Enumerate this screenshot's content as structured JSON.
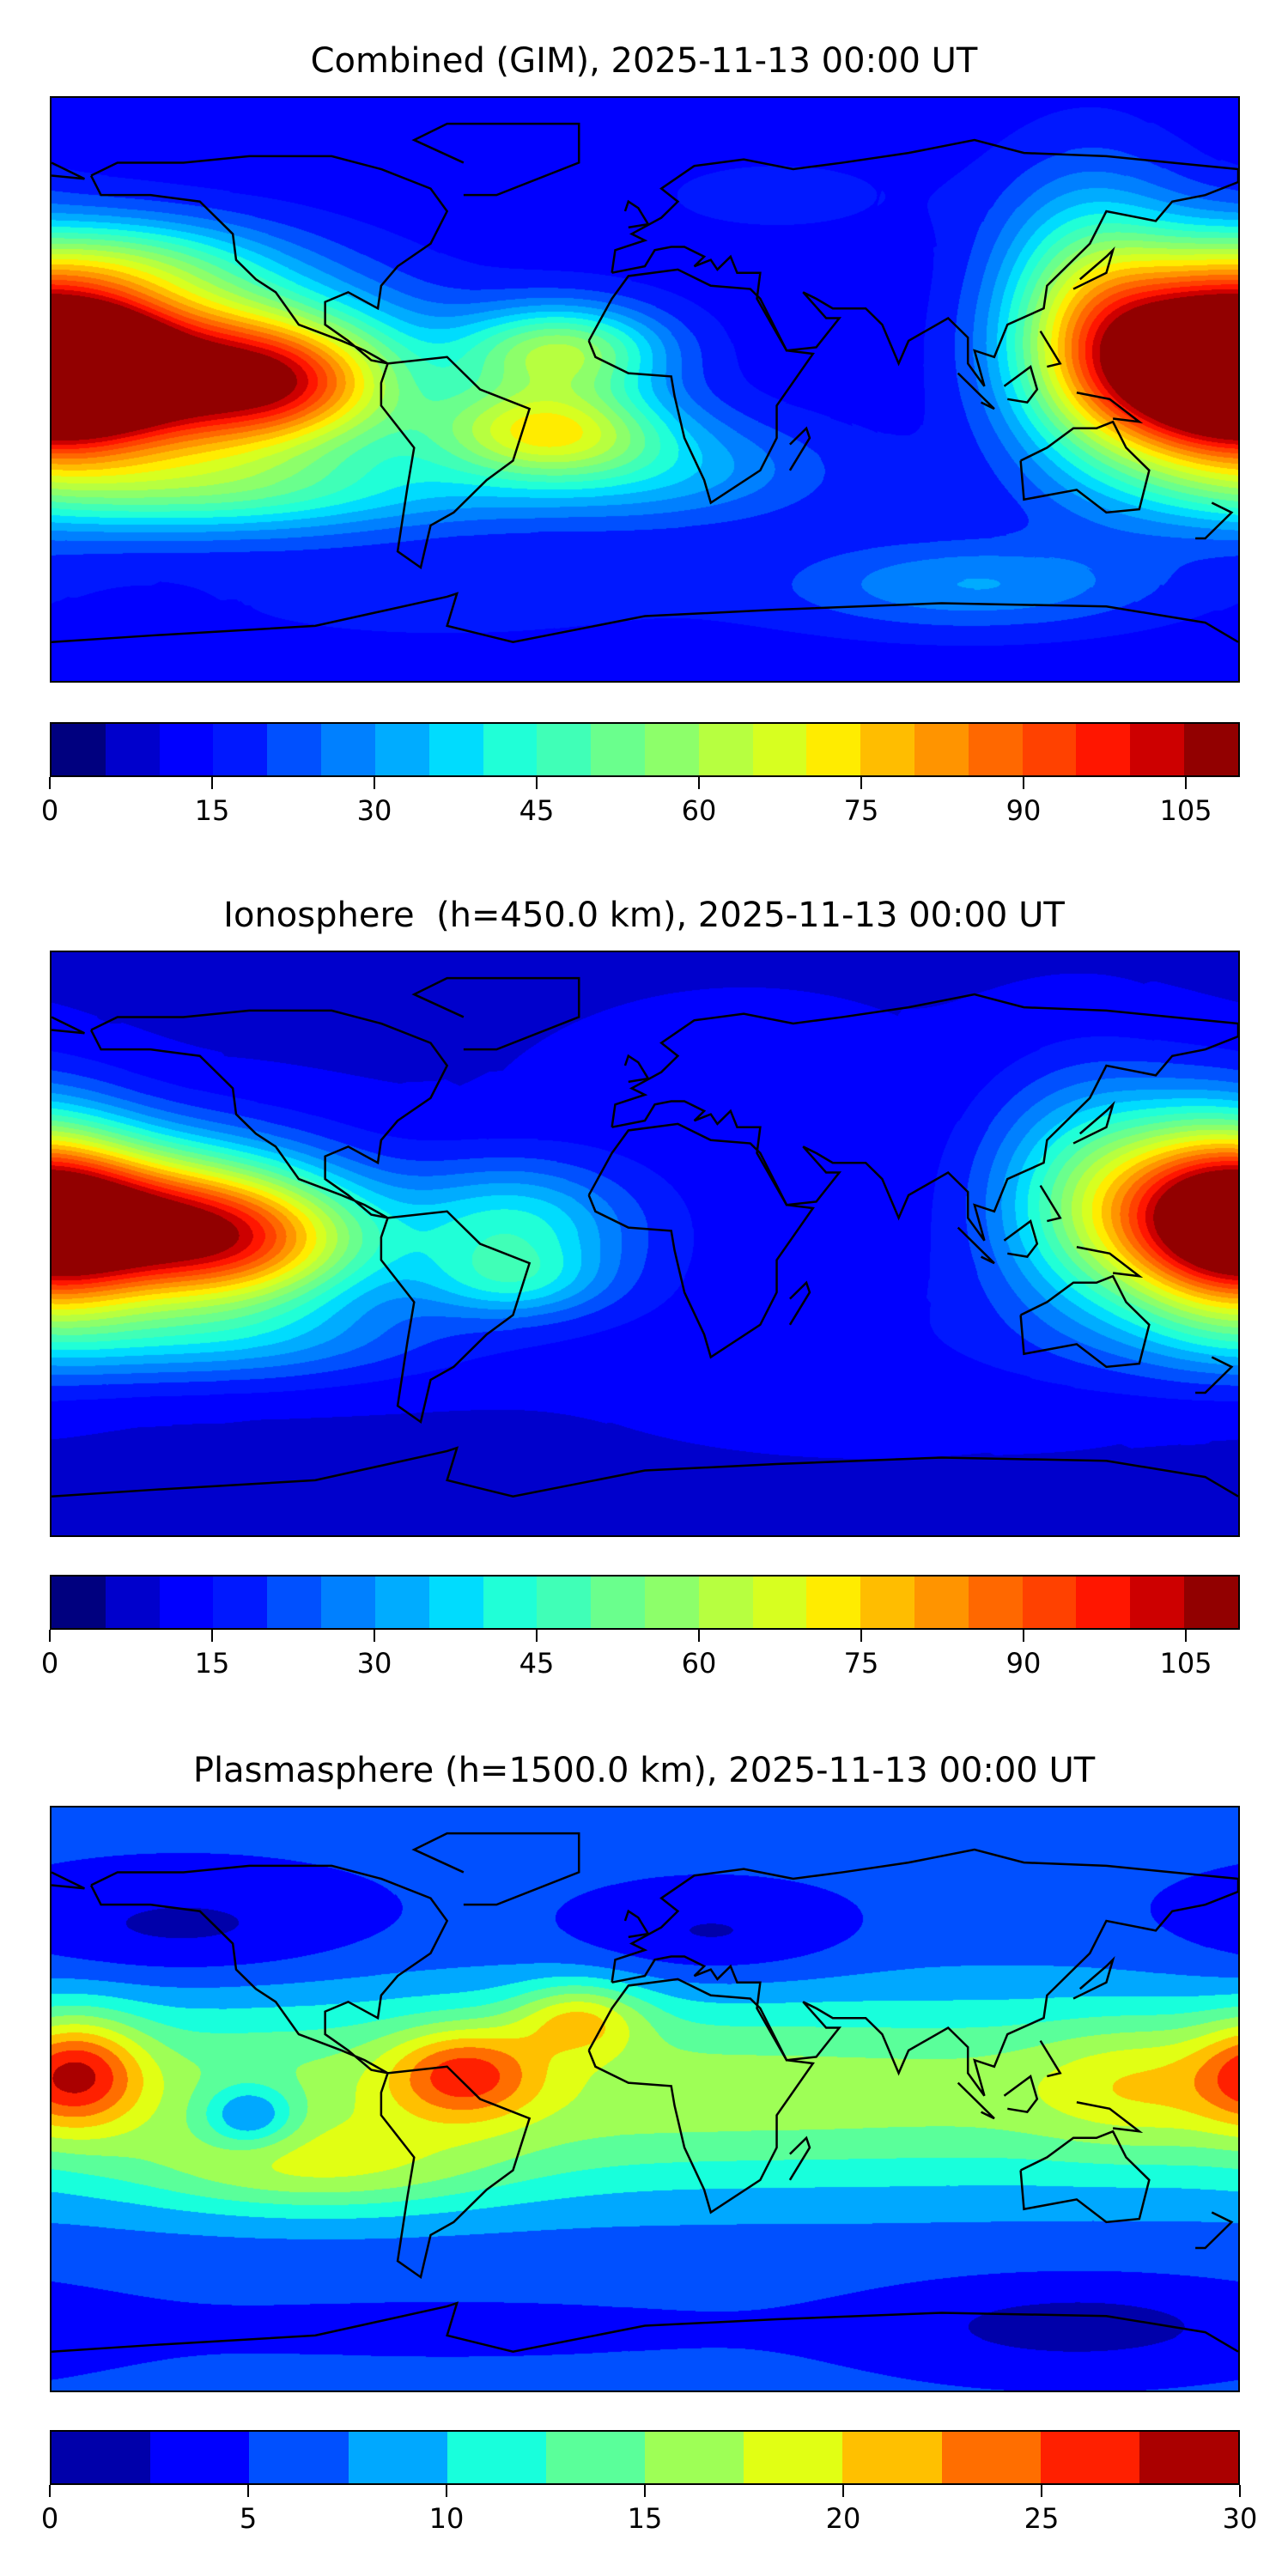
{
  "chart_data": [
    {
      "type": "heatmap",
      "title": "Combined (GIM), 2025-11-13 00:00 UT",
      "projection": "plate-carree",
      "lon_range": [
        -180,
        180
      ],
      "lat_range": [
        -90,
        90
      ],
      "colorbar": {
        "min": 0,
        "max": 110,
        "step": 5,
        "ticks": [
          0,
          15,
          30,
          45,
          60,
          75,
          90,
          105
        ],
        "colors": [
          "#00007f",
          "#0000cc",
          "#0000ff",
          "#0018ff",
          "#0050ff",
          "#0080ff",
          "#00acff",
          "#00dcfe",
          "#20ffd7",
          "#40ffb7",
          "#6aff8d",
          "#8dff6a",
          "#b7ff40",
          "#d7ff20",
          "#ffec00",
          "#ffbd00",
          "#ff9400",
          "#ff6800",
          "#ff4100",
          "#ff1600",
          "#cd0000",
          "#920000"
        ]
      },
      "background_value": 12,
      "features": [
        {
          "lon": -145,
          "lat": 4,
          "rx": 45,
          "ry": 20,
          "peak": 92
        },
        {
          "lon": -168,
          "lat": 8,
          "rx": 14,
          "ry": 10,
          "peak": 40
        },
        {
          "lon": -108,
          "lat": 2,
          "rx": 22,
          "ry": 12,
          "peak": 30
        },
        {
          "lon": -125,
          "lat": -32,
          "rx": 55,
          "ry": 10,
          "peak": 25
        },
        {
          "lon": -155,
          "lat": 40,
          "rx": 30,
          "ry": 10,
          "peak": 22
        },
        {
          "lon": -25,
          "lat": 12,
          "rx": 22,
          "ry": 10,
          "peak": 45
        },
        {
          "lon": -30,
          "lat": -12,
          "rx": 25,
          "ry": 10,
          "peak": 48
        },
        {
          "lon": 0,
          "lat": -25,
          "rx": 40,
          "ry": 12,
          "peak": 20
        },
        {
          "lon": 172,
          "lat": 8,
          "rx": 25,
          "ry": 22,
          "peak": 82
        },
        {
          "lon": 135,
          "lat": 22,
          "rx": 20,
          "ry": 28,
          "peak": 45
        },
        {
          "lon": 40,
          "lat": 60,
          "rx": 40,
          "ry": 12,
          "peak": 4
        },
        {
          "lon": -60,
          "lat": -65,
          "rx": 60,
          "ry": 10,
          "peak": 5
        },
        {
          "lon": 100,
          "lat": -60,
          "rx": 40,
          "ry": 10,
          "peak": 18
        }
      ]
    },
    {
      "type": "heatmap",
      "title": "Ionosphere  (h=450.0 km), 2025-11-13 00:00 UT",
      "projection": "plate-carree",
      "lon_range": [
        -180,
        180
      ],
      "lat_range": [
        -90,
        90
      ],
      "colorbar": {
        "min": 0,
        "max": 110,
        "step": 5,
        "ticks": [
          0,
          15,
          30,
          45,
          60,
          75,
          90,
          105
        ],
        "colors": [
          "#00007f",
          "#0000cc",
          "#0000ff",
          "#0018ff",
          "#0050ff",
          "#0080ff",
          "#00acff",
          "#00dcfe",
          "#20ffd7",
          "#40ffb7",
          "#6aff8d",
          "#8dff6a",
          "#b7ff40",
          "#d7ff20",
          "#ffec00",
          "#ffbd00",
          "#ff9400",
          "#ff6800",
          "#ff4100",
          "#ff1600",
          "#cd0000",
          "#920000"
        ]
      },
      "background_value": 9,
      "features": [
        {
          "lon": -152,
          "lat": 6,
          "rx": 38,
          "ry": 18,
          "peak": 75
        },
        {
          "lon": -120,
          "lat": 0,
          "rx": 28,
          "ry": 14,
          "peak": 40
        },
        {
          "lon": -130,
          "lat": -30,
          "rx": 50,
          "ry": 10,
          "peak": 18
        },
        {
          "lon": -40,
          "lat": 5,
          "rx": 25,
          "ry": 14,
          "peak": 30
        },
        {
          "lon": -40,
          "lat": -12,
          "rx": 20,
          "ry": 8,
          "peak": 18
        },
        {
          "lon": 175,
          "lat": 8,
          "rx": 22,
          "ry": 22,
          "peak": 70
        },
        {
          "lon": 135,
          "lat": 15,
          "rx": 22,
          "ry": 25,
          "peak": 35
        },
        {
          "lon": 30,
          "lat": 20,
          "rx": 60,
          "ry": 40,
          "peak": 3
        },
        {
          "lon": 80,
          "lat": -30,
          "rx": 60,
          "ry": 20,
          "peak": 4
        }
      ]
    },
    {
      "type": "heatmap",
      "title": "Plasmasphere (h=1500.0 km), 2025-11-13 00:00 UT",
      "projection": "plate-carree",
      "lon_range": [
        -180,
        180
      ],
      "lat_range": [
        -90,
        90
      ],
      "colorbar": {
        "min": 0,
        "max": 30,
        "step": 2.5,
        "ticks": [
          0,
          5,
          10,
          15,
          20,
          25,
          30
        ],
        "colors": [
          "#0000aa",
          "#0000ff",
          "#0050ff",
          "#00a8ff",
          "#18ffdc",
          "#5aff9a",
          "#9eff56",
          "#e1ff14",
          "#ffc000",
          "#ff6e00",
          "#ff2000",
          "#aa0000"
        ]
      },
      "background_value": 5.5,
      "features": [
        {
          "lon": 0,
          "lat": 2,
          "rx": 300,
          "ry": 22,
          "peak": 11
        },
        {
          "lon": -172,
          "lat": 8,
          "rx": 14,
          "ry": 12,
          "peak": 13
        },
        {
          "lon": -55,
          "lat": 8,
          "rx": 16,
          "ry": 10,
          "peak": 11
        },
        {
          "lon": -20,
          "lat": 25,
          "rx": 14,
          "ry": 8,
          "peak": 9
        },
        {
          "lon": -120,
          "lat": -5,
          "rx": 10,
          "ry": 7,
          "peak": -9
        },
        {
          "lon": -100,
          "lat": -22,
          "rx": 40,
          "ry": 10,
          "peak": 7
        },
        {
          "lon": 150,
          "lat": 5,
          "rx": 22,
          "ry": 14,
          "peak": 5
        },
        {
          "lon": -140,
          "lat": 52,
          "rx": 40,
          "ry": 12,
          "peak": -4
        },
        {
          "lon": 20,
          "lat": 50,
          "rx": 30,
          "ry": 10,
          "peak": -4
        },
        {
          "lon": 130,
          "lat": -70,
          "rx": 40,
          "ry": 10,
          "peak": -4
        },
        {
          "lon": -60,
          "lat": -70,
          "rx": 80,
          "ry": 8,
          "peak": -1
        }
      ]
    }
  ]
}
